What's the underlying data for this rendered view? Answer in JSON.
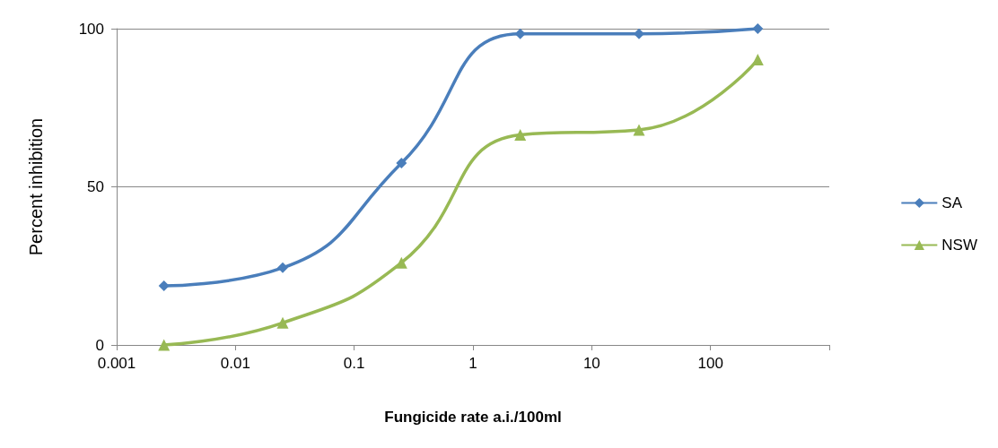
{
  "chart_data": {
    "type": "line",
    "xlabel": "Fungicide rate a.i./100ml",
    "ylabel": "Percent inhibition",
    "log": "x",
    "xlim": [
      0.001,
      1000
    ],
    "xticks": [
      0.001,
      0.01,
      0.1,
      1,
      10,
      100,
      {
        "value": 1000,
        "label": null
      }
    ],
    "ylim": [
      0,
      100
    ],
    "yticks": [
      0,
      50,
      100
    ],
    "grid": "y",
    "legend": "right",
    "series": [
      {
        "name": "SA",
        "color": "#4a7ebb",
        "marker": "diamond",
        "x": [
          0.0025,
          0.025,
          0.25,
          2.5,
          25,
          250
        ],
        "values": [
          18.7,
          24.4,
          57.5,
          98.4,
          98.4,
          100
        ]
      },
      {
        "name": "NSW",
        "color": "#98b954",
        "marker": "triangle",
        "x": [
          0.0025,
          0.025,
          0.25,
          2.5,
          25,
          250
        ],
        "values": [
          0,
          7,
          26,
          66.4,
          68,
          90.2
        ]
      }
    ]
  }
}
